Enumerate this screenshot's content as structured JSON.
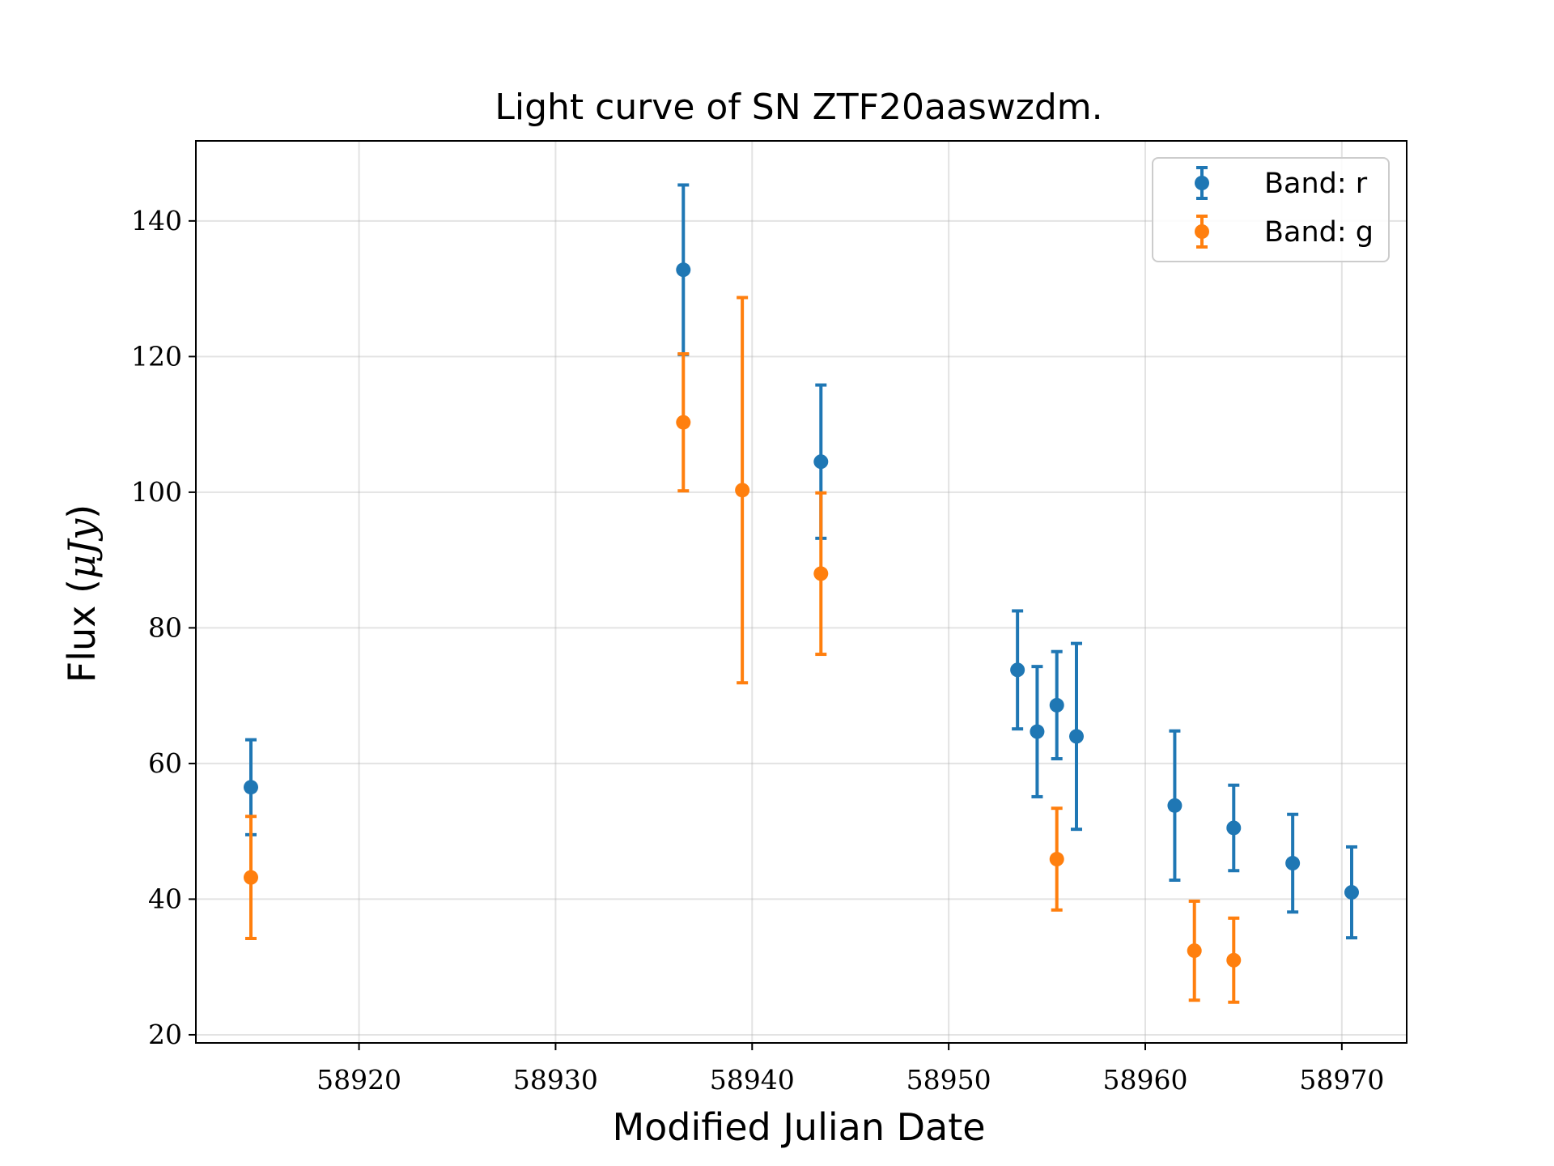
{
  "chart_data": {
    "type": "scatter",
    "title": "Light curve of SN ZTF20aaswzdm.",
    "xlabel": "Modified Julian Date",
    "ylabel_text": "Flux (",
    "ylabel_unit": "μJy",
    "ylabel_close": ")",
    "xlim": [
      58911.7,
      58973.3
    ],
    "ylim": [
      18.8,
      151.8
    ],
    "xticks": [
      58920,
      58930,
      58940,
      58950,
      58960,
      58970
    ],
    "yticks": [
      20,
      40,
      60,
      80,
      100,
      120,
      140
    ],
    "grid": true,
    "legend_position": "top-right",
    "series": [
      {
        "name": "Band: r",
        "color": "#1f77b4",
        "points": [
          {
            "x": 58914.5,
            "y": 56.5,
            "err": 7.0
          },
          {
            "x": 58936.5,
            "y": 132.8,
            "err": 12.5
          },
          {
            "x": 58943.5,
            "y": 104.5,
            "err": 11.3
          },
          {
            "x": 58953.5,
            "y": 73.8,
            "err": 8.7
          },
          {
            "x": 58954.5,
            "y": 64.7,
            "err": 9.6
          },
          {
            "x": 58955.5,
            "y": 68.6,
            "err": 7.9
          },
          {
            "x": 58956.5,
            "y": 64.0,
            "err": 13.7
          },
          {
            "x": 58961.5,
            "y": 53.8,
            "err": 11.0
          },
          {
            "x": 58964.5,
            "y": 50.5,
            "err": 6.3
          },
          {
            "x": 58967.5,
            "y": 45.3,
            "err": 7.2
          },
          {
            "x": 58970.5,
            "y": 41.0,
            "err": 6.7
          }
        ]
      },
      {
        "name": "Band: g",
        "color": "#ff7f0e",
        "points": [
          {
            "x": 58914.5,
            "y": 43.2,
            "err": 9.0
          },
          {
            "x": 58936.5,
            "y": 110.3,
            "err": 10.1
          },
          {
            "x": 58939.5,
            "y": 100.3,
            "err": 28.4
          },
          {
            "x": 58943.5,
            "y": 88.0,
            "err": 11.9
          },
          {
            "x": 58955.5,
            "y": 45.9,
            "err": 7.5
          },
          {
            "x": 58962.5,
            "y": 32.4,
            "err": 7.3
          },
          {
            "x": 58964.5,
            "y": 31.0,
            "err": 6.2
          }
        ]
      }
    ]
  }
}
